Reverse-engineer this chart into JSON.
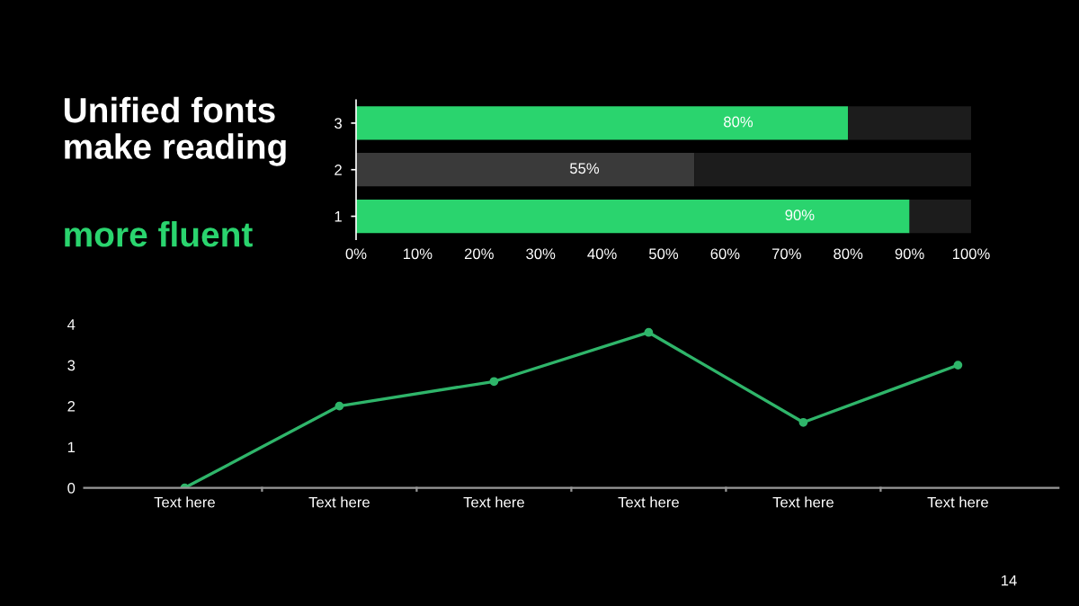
{
  "chart_data": [
    {
      "type": "bar",
      "orientation": "horizontal",
      "stacked": true,
      "title": "Unified fonts make reading",
      "subtitle": "more fluent",
      "categories": [
        "3",
        "2",
        "1"
      ],
      "series": [
        {
          "colors": [
            "#2ad46e",
            "#3a3a3a",
            "#2ad46e"
          ],
          "values": [
            80,
            55,
            90
          ],
          "value_labels": [
            "80%",
            "55%",
            "90%"
          ]
        },
        {
          "color": "#1c1c1c",
          "values": [
            20,
            45,
            10
          ]
        }
      ],
      "xlim": [
        0,
        100
      ],
      "xticks": [
        {
          "value": 0,
          "label": "0%"
        },
        {
          "value": 10,
          "label": "10%"
        },
        {
          "value": 20,
          "label": "20%"
        },
        {
          "value": 30,
          "label": "30%"
        },
        {
          "value": 40,
          "label": "40%"
        },
        {
          "value": 50,
          "label": "50%"
        },
        {
          "value": 60,
          "label": "60%"
        },
        {
          "value": 70,
          "label": "70%"
        },
        {
          "value": 80,
          "label": "80%"
        },
        {
          "value": 90,
          "label": "90%"
        },
        {
          "value": 100,
          "label": "100%"
        }
      ],
      "grid": false,
      "legend": false
    },
    {
      "type": "line",
      "categories": [
        "Text here",
        "Text here",
        "Text here",
        "Text here",
        "Text here",
        "Text here"
      ],
      "series": [
        {
          "color": "#2fb56a",
          "values": [
            0,
            2,
            2.6,
            3.8,
            1.6,
            3.0
          ]
        }
      ],
      "ylim": [
        0,
        4
      ],
      "yticks": [
        0,
        1,
        2,
        3,
        4
      ],
      "marker": "circle",
      "line_style": "solid",
      "grid": false,
      "legend": false,
      "annotations": [
        "14"
      ]
    }
  ]
}
